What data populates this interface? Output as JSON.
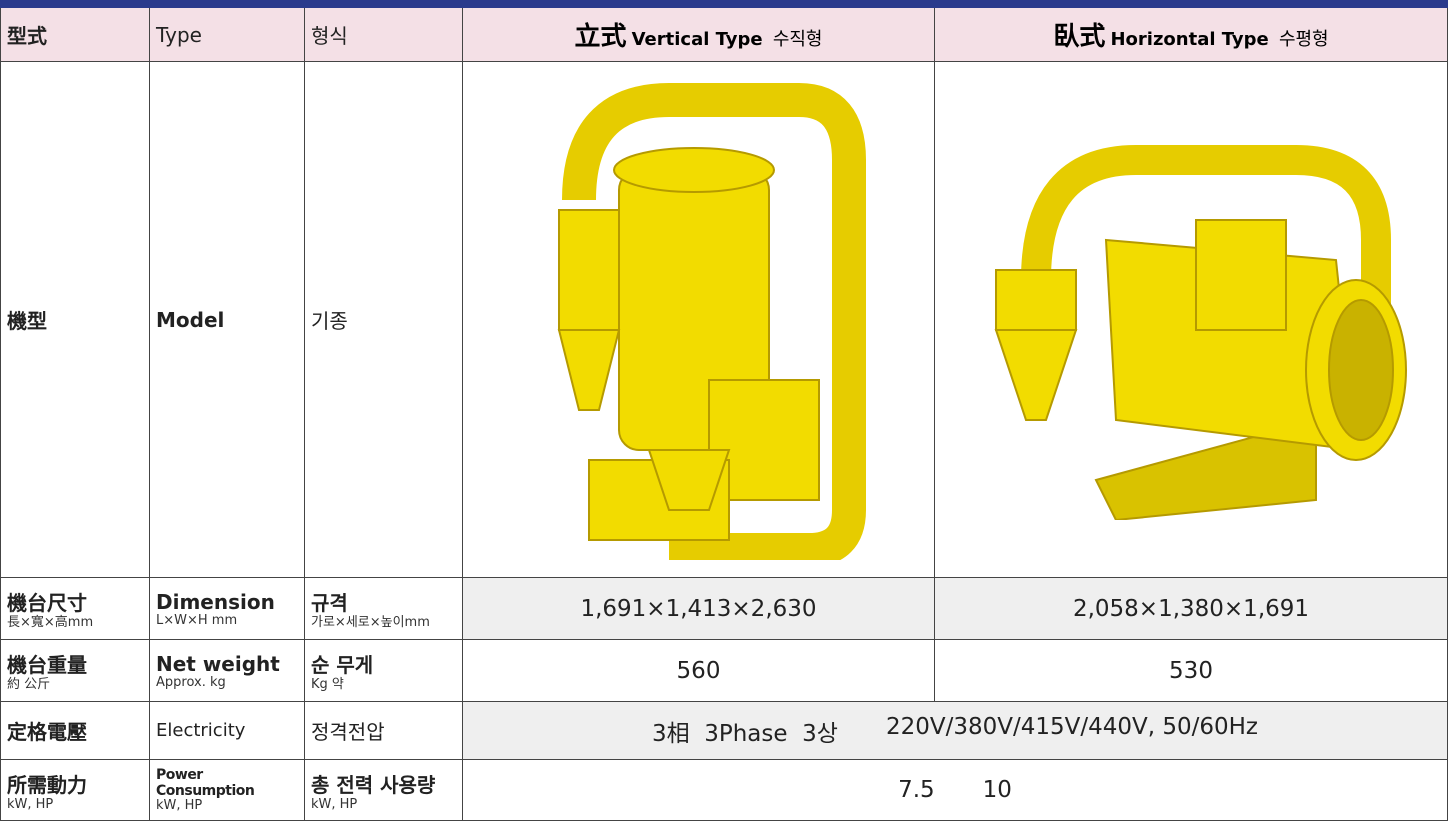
{
  "header": {
    "zh": "型式",
    "en": "Type",
    "ko": "형식",
    "vertical": {
      "zh": "立式",
      "en": "Vertical Type",
      "ko": "수직형"
    },
    "horizontal": {
      "zh": "臥式",
      "en": "Horizontal Type",
      "ko": "수평형"
    }
  },
  "rows": [
    {
      "zh": "機型",
      "en": "Model",
      "ko": "기종"
    },
    {
      "zh": "機台尺寸",
      "zh_sub": "長×寬×高mm",
      "en": "Dimension",
      "en_sub": "L×W×H mm",
      "ko": "규격",
      "ko_sub": "가로×세로×높이mm",
      "vertical": "1,691×1,413×2,630",
      "horizontal": "2,058×1,380×1,691"
    },
    {
      "zh": "機台重量",
      "zh_sub": "約 公斤",
      "en": "Net weight",
      "en_sub": "Approx. kg",
      "ko": "순 무게",
      "ko_sub": "Kg 약",
      "vertical": "560",
      "horizontal": "530"
    },
    {
      "zh": "定格電壓",
      "en": "Electricity",
      "ko": "정격전압",
      "phase": "3相  3Phase  3상",
      "voltage": "220V/380V/415V/440V, 50/60Hz"
    },
    {
      "zh": "所需動力",
      "zh_sub": "kW, HP",
      "en": "Power Consumption",
      "en_sub": "kW, HP",
      "ko": "총 전력 사용량",
      "ko_sub": "kW, HP",
      "kw": "7.5",
      "hp": "10"
    }
  ]
}
